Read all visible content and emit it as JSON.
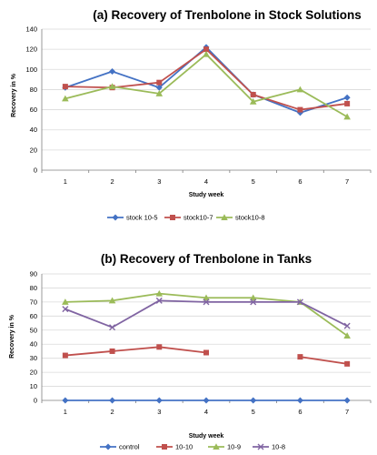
{
  "colors": {
    "blue": "#4472c4",
    "red": "#c0504d",
    "green": "#9bbb59",
    "purple": "#8064a2",
    "grid": "#d9d9d9",
    "axis": "#7f7f7f"
  },
  "chart_data": [
    {
      "type": "line",
      "title": "(a) Recovery of Trenbolone in Stock Solutions",
      "xlabel": "Study week",
      "ylabel": "Recovery in %",
      "categories": [
        "1",
        "2",
        "3",
        "4",
        "5",
        "6",
        "7"
      ],
      "yticks": [
        "0",
        "20",
        "40",
        "60",
        "80",
        "100",
        "120",
        "140"
      ],
      "ylim": [
        0,
        140
      ],
      "grid": true,
      "legend_position": "bottom",
      "series": [
        {
          "name": "stock 10-5",
          "color": "#4472c4",
          "marker": "diamond",
          "values": [
            82,
            98,
            82,
            122,
            75,
            57,
            72
          ]
        },
        {
          "name": "stock10-7",
          "color": "#c0504d",
          "marker": "square",
          "values": [
            83,
            82,
            87,
            120,
            75,
            60,
            66
          ]
        },
        {
          "name": "stock10-8",
          "color": "#9bbb59",
          "marker": "triangle",
          "values": [
            71,
            83,
            76,
            115,
            68,
            80,
            53
          ]
        }
      ]
    },
    {
      "type": "line",
      "title": "(b) Recovery of Trenbolone in Tanks",
      "xlabel": "Study week",
      "ylabel": "Recovery in %",
      "categories": [
        "1",
        "2",
        "3",
        "4",
        "5",
        "6",
        "7"
      ],
      "yticks": [
        "0",
        "10",
        "20",
        "30",
        "40",
        "50",
        "60",
        "70",
        "80",
        "90"
      ],
      "ylim": [
        0,
        90
      ],
      "grid": true,
      "legend_position": "bottom",
      "series": [
        {
          "name": "control",
          "color": "#4472c4",
          "marker": "diamond",
          "values": [
            0,
            0,
            0,
            0,
            0,
            0,
            0
          ]
        },
        {
          "name": "10-10",
          "color": "#c0504d",
          "marker": "square",
          "values": [
            32,
            35,
            38,
            34,
            null,
            31,
            26
          ]
        },
        {
          "name": "10-9",
          "color": "#9bbb59",
          "marker": "triangle",
          "values": [
            70,
            71,
            76,
            73,
            73,
            70,
            46
          ]
        },
        {
          "name": "10-8",
          "color": "#8064a2",
          "marker": "x",
          "values": [
            65,
            52,
            71,
            70,
            70,
            70,
            53
          ]
        }
      ]
    }
  ]
}
